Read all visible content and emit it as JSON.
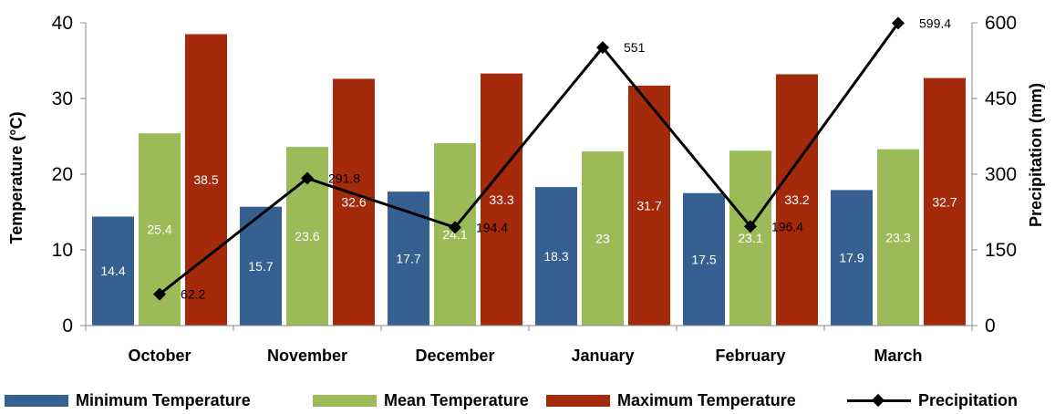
{
  "chart_data": {
    "type": "bar",
    "categories": [
      "October",
      "November",
      "December",
      "January",
      "February",
      "March"
    ],
    "series": [
      {
        "name": "Minimum Temperature",
        "type": "bar",
        "axis": "left",
        "color": "#366092",
        "values": [
          14.4,
          15.7,
          17.7,
          18.3,
          17.5,
          17.9
        ],
        "labels": [
          "14.4",
          "15.7",
          "17.7",
          "18.3",
          "17.5",
          "17.9"
        ]
      },
      {
        "name": "Mean Temperature",
        "type": "bar",
        "axis": "left",
        "color": "#9bbb59",
        "values": [
          25.4,
          23.6,
          24.1,
          23,
          23.1,
          23.3
        ],
        "labels": [
          "25.4",
          "23.6",
          "24.1",
          "23",
          "23.1",
          "23.3"
        ]
      },
      {
        "name": "Maximum Temperature",
        "type": "bar",
        "axis": "left",
        "color": "#a52a0c",
        "values": [
          38.5,
          32.6,
          33.3,
          31.7,
          33.2,
          32.7
        ],
        "labels": [
          "38.5",
          "32.6",
          "33.3",
          "31.7",
          "33.2",
          "32.7"
        ]
      },
      {
        "name": "Precipitation",
        "type": "line",
        "axis": "right",
        "color": "#000000",
        "values": [
          62.2,
          291.8,
          194.4,
          551,
          196.4,
          599.4
        ],
        "labels": [
          "62.2",
          "291.8",
          "194.4",
          "551",
          "196.4",
          "599.4"
        ]
      }
    ],
    "ylabel": "Temperature (°C)",
    "y2label": "Precipitation (mm)",
    "ylim": [
      0,
      40
    ],
    "y2lim": [
      0,
      600
    ],
    "yticks": [
      "0",
      "10",
      "20",
      "30",
      "40"
    ],
    "y2ticks": [
      "0",
      "150",
      "300",
      "450",
      "600"
    ],
    "grid": false,
    "legend_position": "bottom"
  }
}
